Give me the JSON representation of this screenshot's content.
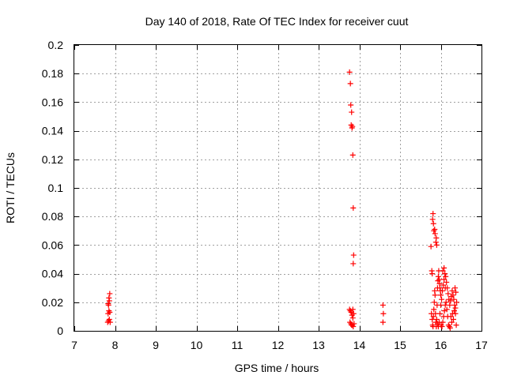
{
  "chart_data": {
    "type": "scatter",
    "title": "Day 140 of 2018, Rate Of TEC Index for receiver cuut",
    "xlabel": "GPS time / hours",
    "ylabel": "ROTI / TECUs",
    "xlim": [
      7,
      17
    ],
    "ylim": [
      0,
      0.2
    ],
    "x_ticks": [
      7,
      8,
      9,
      10,
      11,
      12,
      13,
      14,
      15,
      16,
      17
    ],
    "x_tick_labels": [
      "7",
      "8",
      "9",
      "10",
      "11",
      "12",
      "13",
      "14",
      "15",
      "16",
      "17"
    ],
    "y_ticks": [
      0,
      0.02,
      0.04,
      0.06,
      0.08,
      0.1,
      0.12,
      0.14,
      0.16,
      0.18,
      0.2
    ],
    "y_tick_labels": [
      "0",
      "0.02",
      "0.04",
      "0.06",
      "0.08",
      "0.1",
      "0.12",
      "0.14",
      "0.16",
      "0.18",
      "0.2"
    ],
    "grid": true,
    "marker": "+",
    "series": [
      {
        "name": "ROTI",
        "color": "#ff0000",
        "points": [
          [
            7.82,
            0.006
          ],
          [
            7.84,
            0.007
          ],
          [
            7.83,
            0.012
          ],
          [
            7.85,
            0.014
          ],
          [
            7.84,
            0.018
          ],
          [
            7.86,
            0.021
          ],
          [
            7.85,
            0.023
          ],
          [
            7.87,
            0.026
          ],
          [
            7.86,
            0.008
          ],
          [
            7.88,
            0.006
          ],
          [
            7.83,
            0.019
          ],
          [
            7.87,
            0.013
          ],
          [
            13.76,
            0.181
          ],
          [
            13.78,
            0.173
          ],
          [
            13.79,
            0.158
          ],
          [
            13.81,
            0.153
          ],
          [
            13.8,
            0.144
          ],
          [
            13.82,
            0.142
          ],
          [
            13.83,
            0.143
          ],
          [
            13.84,
            0.123
          ],
          [
            13.85,
            0.086
          ],
          [
            13.86,
            0.053
          ],
          [
            13.85,
            0.047
          ],
          [
            13.76,
            0.015
          ],
          [
            13.78,
            0.014
          ],
          [
            13.8,
            0.013
          ],
          [
            13.82,
            0.011
          ],
          [
            13.84,
            0.015
          ],
          [
            13.86,
            0.012
          ],
          [
            13.77,
            0.006
          ],
          [
            13.79,
            0.005
          ],
          [
            13.81,
            0.004
          ],
          [
            13.83,
            0.004
          ],
          [
            13.85,
            0.003
          ],
          [
            13.87,
            0.005
          ],
          [
            13.84,
            0.009
          ],
          [
            14.58,
            0.018
          ],
          [
            14.59,
            0.012
          ],
          [
            14.58,
            0.006
          ],
          [
            15.76,
            0.059
          ],
          [
            15.78,
            0.042
          ],
          [
            15.79,
            0.04
          ],
          [
            15.8,
            0.078
          ],
          [
            15.81,
            0.082
          ],
          [
            15.82,
            0.075
          ],
          [
            15.83,
            0.07
          ],
          [
            15.85,
            0.071
          ],
          [
            15.86,
            0.068
          ],
          [
            15.88,
            0.062
          ],
          [
            15.9,
            0.06
          ],
          [
            15.89,
            0.065
          ],
          [
            15.77,
            0.012
          ],
          [
            15.79,
            0.008
          ],
          [
            15.8,
            0.004
          ],
          [
            15.81,
            0.003
          ],
          [
            15.82,
            0.01
          ],
          [
            15.83,
            0.015
          ],
          [
            15.84,
            0.02
          ],
          [
            15.85,
            0.028
          ],
          [
            15.86,
            0.025
          ],
          [
            15.87,
            0.012
          ],
          [
            15.88,
            0.006
          ],
          [
            15.89,
            0.003
          ],
          [
            15.9,
            0.008
          ],
          [
            15.91,
            0.018
          ],
          [
            15.92,
            0.03
          ],
          [
            15.93,
            0.035
          ],
          [
            15.94,
            0.038
          ],
          [
            15.95,
            0.042
          ],
          [
            15.96,
            0.036
          ],
          [
            15.97,
            0.033
          ],
          [
            15.98,
            0.03
          ],
          [
            15.99,
            0.028
          ],
          [
            16.0,
            0.025
          ],
          [
            15.92,
            0.005
          ],
          [
            15.94,
            0.003
          ],
          [
            15.96,
            0.006
          ],
          [
            15.98,
            0.012
          ],
          [
            16.0,
            0.018
          ],
          [
            16.02,
            0.022
          ],
          [
            16.04,
            0.028
          ],
          [
            16.06,
            0.032
          ],
          [
            16.08,
            0.036
          ],
          [
            16.1,
            0.04
          ],
          [
            16.12,
            0.038
          ],
          [
            16.14,
            0.034
          ],
          [
            16.01,
            0.004
          ],
          [
            16.03,
            0.003
          ],
          [
            16.05,
            0.006
          ],
          [
            16.07,
            0.01
          ],
          [
            16.09,
            0.014
          ],
          [
            16.11,
            0.018
          ],
          [
            16.13,
            0.02
          ],
          [
            16.15,
            0.015
          ],
          [
            16.17,
            0.01
          ],
          [
            16.19,
            0.004
          ],
          [
            16.21,
            0.003
          ],
          [
            16.23,
            0.002
          ],
          [
            16.16,
            0.03
          ],
          [
            16.18,
            0.026
          ],
          [
            16.2,
            0.022
          ],
          [
            16.22,
            0.018
          ],
          [
            16.24,
            0.021
          ],
          [
            16.26,
            0.024
          ],
          [
            16.28,
            0.028
          ],
          [
            16.3,
            0.025
          ],
          [
            16.32,
            0.022
          ],
          [
            16.34,
            0.018
          ],
          [
            16.36,
            0.012
          ],
          [
            16.38,
            0.004
          ],
          [
            16.35,
            0.03
          ],
          [
            16.37,
            0.027
          ],
          [
            16.39,
            0.02
          ],
          [
            16.36,
            0.016
          ],
          [
            16.33,
            0.014
          ],
          [
            16.29,
            0.012
          ],
          [
            16.25,
            0.01
          ],
          [
            16.27,
            0.006
          ],
          [
            16.31,
            0.008
          ],
          [
            16.05,
            0.042
          ],
          [
            16.08,
            0.044
          ],
          [
            16.11,
            0.03
          ]
        ]
      }
    ]
  }
}
